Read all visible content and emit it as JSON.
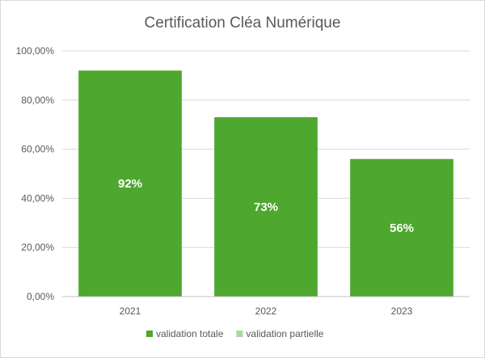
{
  "chart_data": {
    "type": "bar",
    "title": "Certification Cléa Numérique",
    "categories": [
      "2021",
      "2022",
      "2023"
    ],
    "series": [
      {
        "name": "validation totale",
        "values": [
          0.92,
          0.73,
          0.56
        ],
        "data_labels": [
          "92%",
          "73%",
          "56%"
        ],
        "color": "#4ea72e"
      },
      {
        "name": "validation partielle",
        "values": [
          0,
          0,
          0
        ],
        "color": "#a9d99b"
      }
    ],
    "ylim": [
      0,
      1
    ],
    "y_ticks": [
      0,
      0.2,
      0.4,
      0.6,
      0.8,
      1.0
    ],
    "y_tick_labels": [
      "0,00%",
      "20,00%",
      "40,00%",
      "60,00%",
      "80,00%",
      "100,00%"
    ],
    "xlabel": "",
    "ylabel": "",
    "grid": true,
    "gridline_color": "#d9d9d9",
    "legend_position": "bottom"
  }
}
